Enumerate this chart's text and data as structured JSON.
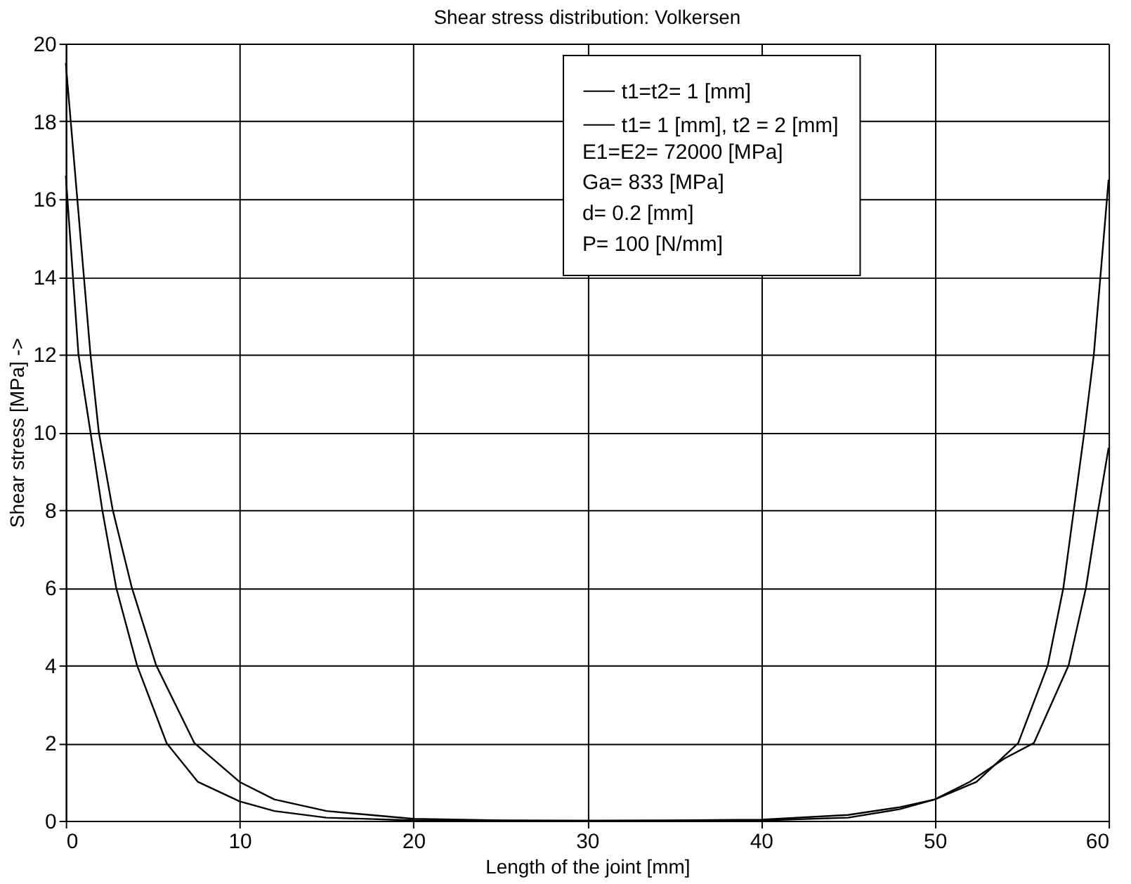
{
  "chart_data": {
    "type": "line",
    "title": "Shear stress distribution: Volkersen",
    "xlabel": "Length of the joint [mm]",
    "ylabel": "Shear stress [MPa] ->",
    "xlim": [
      0,
      60
    ],
    "xticks": [
      0,
      10,
      20,
      30,
      40,
      50,
      60
    ],
    "ylim": [
      0,
      20
    ],
    "yticks": [
      0,
      2,
      4,
      6,
      8,
      10,
      12,
      14,
      16,
      18,
      20
    ],
    "grid": true,
    "legend": "top right",
    "marker": "none",
    "line_style": "solid",
    "series": [
      {
        "name": "t1=t2= 1 [mm]",
        "color": "#000000",
        "x": [
          0,
          0.73,
          1.42,
          2.1,
          2.9,
          4.1,
          5.8,
          7.6,
          10,
          12,
          15,
          20,
          25,
          30,
          35,
          40,
          45,
          48,
          50,
          52.4,
          54.8,
          56.5,
          57.4,
          58,
          58.6,
          59.15,
          60
        ],
        "values": [
          16.6,
          12,
          10,
          8,
          6,
          4,
          2,
          1,
          0.5,
          0.25,
          0.08,
          0.01,
          0,
          0,
          0,
          0.01,
          0.08,
          0.3,
          0.55,
          1,
          2,
          4,
          6,
          8,
          10,
          12,
          16.5
        ]
      },
      {
        "name": "t1= 1 [mm], t2 = 2 [mm]",
        "color": "#000000",
        "x": [
          0,
          1.42,
          1.9,
          2.7,
          3.8,
          5.2,
          7.4,
          10,
          12,
          15,
          20,
          25,
          30,
          35,
          40,
          45,
          48,
          50,
          52,
          54,
          55.7,
          57.7,
          58.7,
          59.4,
          60
        ],
        "values": [
          19.5,
          12,
          10,
          8,
          6,
          4,
          2,
          1,
          0.55,
          0.25,
          0.05,
          0.01,
          0,
          0.01,
          0.03,
          0.15,
          0.35,
          0.55,
          1,
          1.6,
          2,
          4,
          6,
          8,
          9.6
        ]
      }
    ],
    "annotations": [
      "E1=E2= 72000 [MPa]",
      "Ga= 833 [MPa]",
      "d= 0.2 [mm]",
      "P= 100 [N/mm]"
    ]
  }
}
